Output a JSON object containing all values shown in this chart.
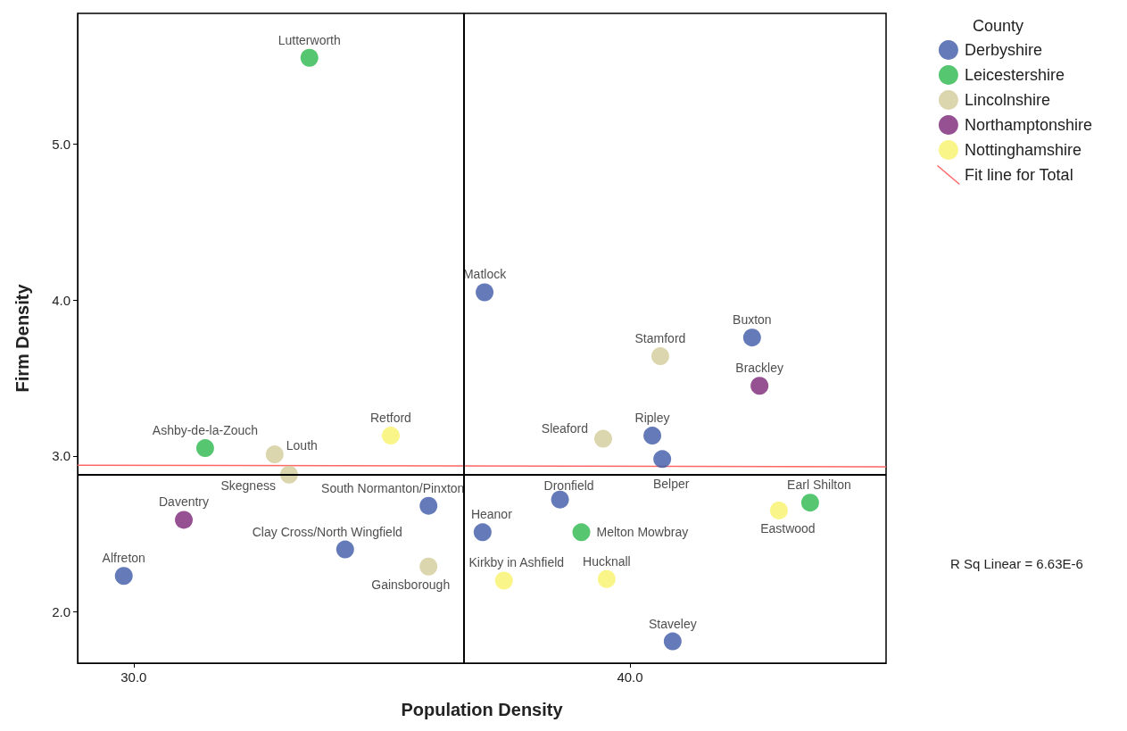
{
  "chart_data": {
    "type": "scatter",
    "xlabel": "Population Density",
    "ylabel": "Firm Density",
    "legend_title": "County",
    "legend": "top right",
    "grid": false,
    "xlim": [
      28.87,
      45.16
    ],
    "ylim": [
      1.67,
      5.84
    ],
    "xticks": [
      {
        "value": 30,
        "label": "30.0"
      },
      {
        "value": 40,
        "label": "40.0"
      }
    ],
    "yticks": [
      {
        "value": 2,
        "label": "2.0"
      },
      {
        "value": 3,
        "label": "3.0"
      },
      {
        "value": 4,
        "label": "4.0"
      },
      {
        "value": 5,
        "label": "5.0"
      }
    ],
    "series": [
      {
        "name": "Derbyshire",
        "color": "#3e5aa8",
        "marker": "circle",
        "x": [
          37.07,
          42.46,
          40.45,
          40.65,
          35.94,
          38.59,
          37.03,
          34.26,
          29.8,
          40.86
        ],
        "values": [
          4.05,
          3.76,
          3.13,
          2.98,
          2.68,
          2.72,
          2.51,
          2.4,
          2.23,
          1.81
        ],
        "value_labels": [
          "Matlock",
          "Buxton",
          "Ripley",
          "Belper",
          "South Normanton/Pinxton",
          "Dronfield",
          "Heanor",
          "Clay Cross/North Wingfield",
          "Alfreton",
          "Staveley"
        ]
      },
      {
        "name": "Leicestershire",
        "color": "#2db84d",
        "marker": "circle",
        "x": [
          33.54,
          31.44,
          43.63,
          39.02
        ],
        "values": [
          5.555,
          3.05,
          2.7,
          2.51
        ],
        "value_labels": [
          "Lutterworth",
          "Ashby-de-la-Zouch",
          "Earl Shilton",
          "Melton Mowbray"
        ]
      },
      {
        "name": "Lincolnshire",
        "color": "#d2cc98",
        "marker": "circle",
        "x": [
          40.61,
          32.84,
          33.13,
          39.46,
          35.94
        ],
        "values": [
          3.64,
          3.01,
          2.88,
          3.11,
          2.29
        ],
        "value_labels": [
          "Stamford",
          "Louth",
          "Skegness",
          "Sleaford",
          "Gainsborough"
        ]
      },
      {
        "name": "Northamptonshire",
        "color": "#7a2577",
        "marker": "circle",
        "x": [
          42.61,
          31.01
        ],
        "values": [
          3.45,
          2.59
        ],
        "value_labels": [
          "Brackley",
          "Daventry"
        ]
      },
      {
        "name": "Nottinghamshire",
        "color": "#f7f36a",
        "marker": "circle",
        "x": [
          35.18,
          43.0,
          37.46,
          39.53
        ],
        "values": [
          3.13,
          2.65,
          2.2,
          2.21
        ],
        "value_labels": [
          "Retford",
          "Eastwood",
          "Kirkby in Ashfield",
          "Hucknall"
        ]
      },
      {
        "name": "Fit line for Total",
        "type": "line",
        "marker": "none",
        "color": "#ff6666",
        "x": [
          28.87,
          45.16
        ],
        "values": [
          2.94,
          2.93
        ]
      }
    ],
    "ref_lines": [
      {
        "axis": "x",
        "value": 36.65,
        "color": "#000000"
      },
      {
        "axis": "y",
        "value": 2.88,
        "color": "#000000"
      }
    ],
    "annotations": [
      "R Sq Linear = 6.63E-6"
    ]
  }
}
